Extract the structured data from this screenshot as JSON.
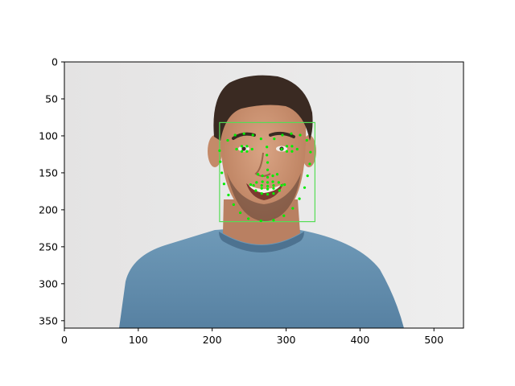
{
  "chart_data": {
    "type": "scatter",
    "title": "",
    "xlabel": "",
    "ylabel": "",
    "xlim": [
      0,
      540
    ],
    "ylim": [
      360,
      0
    ],
    "x_ticks": [
      0,
      100,
      200,
      300,
      400,
      500
    ],
    "y_ticks": [
      0,
      50,
      100,
      150,
      200,
      250,
      300,
      350
    ],
    "x_tick_labels": [
      "0",
      "100",
      "200",
      "300",
      "400",
      "500"
    ],
    "y_tick_labels": [
      "0",
      "50",
      "100",
      "150",
      "200",
      "250",
      "300",
      "350"
    ],
    "grid": false,
    "image_content": "portrait photo of a smiling man in a blue t-shirt with detected facial landmarks",
    "face_box": {
      "x0": 210,
      "y0": 82,
      "x1": 339,
      "y1": 216,
      "color": "#55dd55"
    },
    "landmark_color": "#00ee00",
    "landmarks": [
      [
        210,
        120
      ],
      [
        211,
        135
      ],
      [
        213,
        150
      ],
      [
        216,
        165
      ],
      [
        222,
        180
      ],
      [
        229,
        193
      ],
      [
        238,
        204
      ],
      [
        249,
        212
      ],
      [
        266,
        215
      ],
      [
        283,
        214
      ],
      [
        297,
        208
      ],
      [
        309,
        198
      ],
      [
        318,
        185
      ],
      [
        325,
        170
      ],
      [
        329,
        154
      ],
      [
        332,
        138
      ],
      [
        333,
        122
      ],
      [
        221,
        106
      ],
      [
        231,
        99
      ],
      [
        243,
        97
      ],
      [
        255,
        99
      ],
      [
        266,
        104
      ],
      [
        284,
        104
      ],
      [
        295,
        99
      ],
      [
        307,
        97
      ],
      [
        319,
        99
      ],
      [
        328,
        106
      ],
      [
        274,
        115
      ],
      [
        274,
        126
      ],
      [
        275,
        136
      ],
      [
        275,
        146
      ],
      [
        262,
        152
      ],
      [
        268,
        154
      ],
      [
        275,
        156
      ],
      [
        282,
        154
      ],
      [
        288,
        152
      ],
      [
        233,
        118
      ],
      [
        240,
        114
      ],
      [
        247,
        114
      ],
      [
        254,
        118
      ],
      [
        247,
        121
      ],
      [
        240,
        121
      ],
      [
        294,
        118
      ],
      [
        301,
        114
      ],
      [
        308,
        114
      ],
      [
        315,
        118
      ],
      [
        308,
        121
      ],
      [
        301,
        121
      ],
      [
        252,
        166
      ],
      [
        260,
        163
      ],
      [
        268,
        162
      ],
      [
        275,
        163
      ],
      [
        282,
        162
      ],
      [
        290,
        163
      ],
      [
        298,
        166
      ],
      [
        291,
        174
      ],
      [
        283,
        178
      ],
      [
        275,
        179
      ],
      [
        267,
        178
      ],
      [
        259,
        174
      ],
      [
        256,
        167
      ],
      [
        267,
        167
      ],
      [
        275,
        168
      ],
      [
        283,
        167
      ],
      [
        294,
        167
      ],
      [
        283,
        171
      ],
      [
        275,
        172
      ],
      [
        267,
        171
      ]
    ]
  }
}
